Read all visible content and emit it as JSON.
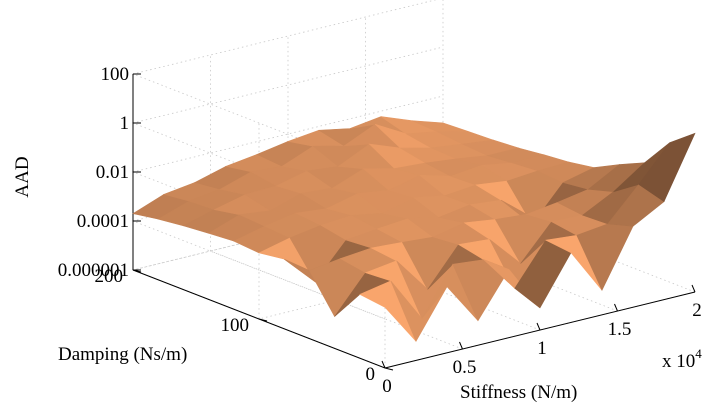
{
  "chart_data": {
    "type": "surface",
    "zlabel": "AAD",
    "ylabel": "Damping (Ns/m)",
    "xlabel": "Stiffness (N/m)",
    "x_multiplier_label": "x 10",
    "x_multiplier_exponent": "4",
    "z_scale": "log",
    "zlim": [
      1e-06,
      100
    ],
    "z_ticks": [
      "0.000001",
      "0.0001",
      "0.01",
      "1",
      "100"
    ],
    "z_tick_values": [
      1e-06,
      0.0001,
      0.01,
      1,
      100
    ],
    "ylim": [
      0,
      200
    ],
    "y_ticks": [
      "0",
      "100",
      "200"
    ],
    "y_tick_values": [
      0,
      100,
      200
    ],
    "xlim": [
      0,
      20000
    ],
    "x_ticks": [
      "0",
      "0.5",
      "1",
      "1.5",
      "2"
    ],
    "x_tick_values": [
      0,
      5000,
      10000,
      15000,
      20000
    ],
    "grid": true,
    "surface_color": "#d08a5a",
    "x": [
      0,
      2000,
      4000,
      6000,
      8000,
      10000,
      12000,
      14000,
      16000,
      18000,
      20000
    ],
    "y": [
      0,
      20,
      40,
      60,
      80,
      100,
      120,
      140,
      160,
      180,
      200
    ],
    "z": [
      [
        0.0003,
        6e-06,
        0.0005,
        1e-05,
        0.0006,
        8e-06,
        0.0007,
        1e-05,
        0.002,
        0.01,
        3
      ],
      [
        0.0004,
        0.0007,
        1e-05,
        0.0008,
        0.0006,
        2e-05,
        0.0009,
        0.0007,
        0.001,
        0.02,
        0.5
      ],
      [
        2e-05,
        0.0006,
        0.0009,
        3e-05,
        0.001,
        0.0008,
        4e-05,
        0.001,
        0.0009,
        0.004,
        0.03
      ],
      [
        0.0006,
        0.0009,
        0.0012,
        0.001,
        0.0008,
        0.0015,
        0.001,
        0.0008,
        0.0012,
        0.002,
        0.01
      ],
      [
        0.0007,
        4e-05,
        0.001,
        0.0014,
        0.0018,
        0.001,
        0.0016,
        0.0012,
        6e-05,
        0.0015,
        0.003
      ],
      [
        0.0005,
        0.001,
        0.0016,
        0.002,
        0.0012,
        0.0025,
        0.0015,
        0.002,
        0.0014,
        0.0018,
        0.002
      ],
      [
        0.0006,
        0.0012,
        0.002,
        0.0015,
        0.003,
        0.002,
        0.004,
        0.0018,
        0.0025,
        0.0015,
        0.0016
      ],
      [
        0.0005,
        0.0014,
        0.001,
        0.0025,
        0.002,
        0.006,
        0.003,
        0.0025,
        0.0018,
        0.0012,
        0.0012
      ],
      [
        0.0004,
        0.0009,
        0.0018,
        0.002,
        0.004,
        0.003,
        0.012,
        0.004,
        0.002,
        0.0014,
        0.001
      ],
      [
        0.0003,
        0.0008,
        0.0012,
        0.003,
        0.0025,
        0.008,
        0.004,
        0.015,
        0.003,
        0.0018,
        0.0009
      ],
      [
        0.0002,
        0.0006,
        0.0009,
        0.002,
        0.003,
        0.005,
        0.007,
        0.004,
        0.006,
        0.002,
        0.0008
      ]
    ]
  }
}
